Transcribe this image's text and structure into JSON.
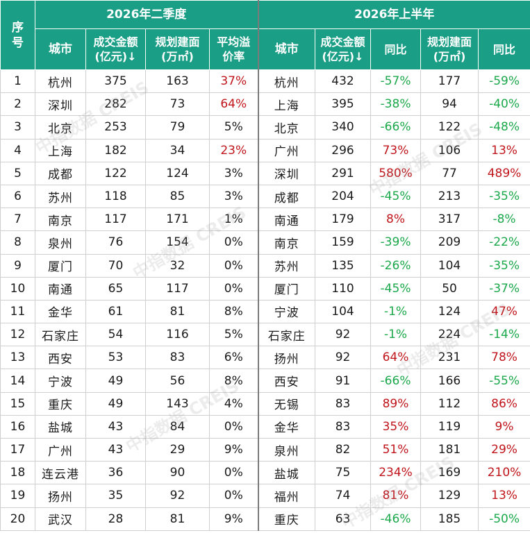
{
  "header": {
    "q2_title": "2026年二季度",
    "h1_title": "2026年上半年",
    "seq": "序号",
    "city": "城市",
    "amount": "成交金额(亿元)↓",
    "area": "规划建面(万㎡)",
    "premium": "平均溢价率",
    "yoy": "同比",
    "amount2": "成交金额(亿元)↓",
    "area2": "规划建面(万㎡)",
    "yoy2": "同比"
  },
  "rows": [
    {
      "seq": "1",
      "c1": "杭州",
      "a1": "375",
      "b1": "163",
      "p1": "37%",
      "c2": "杭州",
      "a2": "432",
      "y2": "-57%",
      "b2": "177",
      "z2": "-59%"
    },
    {
      "seq": "2",
      "c1": "深圳",
      "a1": "282",
      "b1": "73",
      "p1": "64%",
      "c2": "上海",
      "a2": "395",
      "y2": "-38%",
      "b2": "94",
      "z2": "-40%"
    },
    {
      "seq": "3",
      "c1": "北京",
      "a1": "253",
      "b1": "79",
      "p1": "5%",
      "c2": "北京",
      "a2": "340",
      "y2": "-66%",
      "b2": "122",
      "z2": "-48%"
    },
    {
      "seq": "4",
      "c1": "上海",
      "a1": "182",
      "b1": "34",
      "p1": "23%",
      "c2": "广州",
      "a2": "296",
      "y2": "73%",
      "b2": "106",
      "z2": "13%"
    },
    {
      "seq": "5",
      "c1": "成都",
      "a1": "122",
      "b1": "124",
      "p1": "3%",
      "c2": "深圳",
      "a2": "291",
      "y2": "580%",
      "b2": "77",
      "z2": "489%"
    },
    {
      "seq": "6",
      "c1": "苏州",
      "a1": "118",
      "b1": "85",
      "p1": "3%",
      "c2": "成都",
      "a2": "204",
      "y2": "-45%",
      "b2": "213",
      "z2": "-35%"
    },
    {
      "seq": "7",
      "c1": "南京",
      "a1": "117",
      "b1": "171",
      "p1": "1%",
      "c2": "南通",
      "a2": "179",
      "y2": "8%",
      "b2": "317",
      "z2": "-8%"
    },
    {
      "seq": "8",
      "c1": "泉州",
      "a1": "76",
      "b1": "154",
      "p1": "0%",
      "c2": "南京",
      "a2": "159",
      "y2": "-39%",
      "b2": "209",
      "z2": "-22%"
    },
    {
      "seq": "9",
      "c1": "厦门",
      "a1": "70",
      "b1": "32",
      "p1": "0%",
      "c2": "苏州",
      "a2": "135",
      "y2": "-26%",
      "b2": "104",
      "z2": "-35%"
    },
    {
      "seq": "10",
      "c1": "南通",
      "a1": "65",
      "b1": "117",
      "p1": "0%",
      "c2": "厦门",
      "a2": "110",
      "y2": "-45%",
      "b2": "50",
      "z2": "-37%"
    },
    {
      "seq": "11",
      "c1": "金华",
      "a1": "61",
      "b1": "81",
      "p1": "8%",
      "c2": "宁波",
      "a2": "104",
      "y2": "-1%",
      "b2": "124",
      "z2": "47%"
    },
    {
      "seq": "12",
      "c1": "石家庄",
      "a1": "54",
      "b1": "116",
      "p1": "5%",
      "c2": "石家庄",
      "a2": "92",
      "y2": "-1%",
      "b2": "224",
      "z2": "-14%"
    },
    {
      "seq": "13",
      "c1": "西安",
      "a1": "53",
      "b1": "83",
      "p1": "6%",
      "c2": "扬州",
      "a2": "92",
      "y2": "64%",
      "b2": "231",
      "z2": "78%"
    },
    {
      "seq": "14",
      "c1": "宁波",
      "a1": "49",
      "b1": "56",
      "p1": "8%",
      "c2": "西安",
      "a2": "91",
      "y2": "-66%",
      "b2": "166",
      "z2": "-55%"
    },
    {
      "seq": "15",
      "c1": "重庆",
      "a1": "49",
      "b1": "143",
      "p1": "4%",
      "c2": "无锡",
      "a2": "83",
      "y2": "89%",
      "b2": "112",
      "z2": "86%"
    },
    {
      "seq": "16",
      "c1": "盐城",
      "a1": "43",
      "b1": "84",
      "p1": "0%",
      "c2": "金华",
      "a2": "83",
      "y2": "35%",
      "b2": "119",
      "z2": "9%"
    },
    {
      "seq": "17",
      "c1": "广州",
      "a1": "43",
      "b1": "29",
      "p1": "9%",
      "c2": "泉州",
      "a2": "82",
      "y2": "51%",
      "b2": "181",
      "z2": "29%"
    },
    {
      "seq": "18",
      "c1": "连云港",
      "a1": "36",
      "b1": "90",
      "p1": "0%",
      "c2": "盐城",
      "a2": "75",
      "y2": "234%",
      "b2": "169",
      "z2": "210%"
    },
    {
      "seq": "19",
      "c1": "扬州",
      "a1": "35",
      "b1": "92",
      "p1": "0%",
      "c2": "福州",
      "a2": "74",
      "y2": "81%",
      "b2": "129",
      "z2": "13%"
    },
    {
      "seq": "20",
      "c1": "武汉",
      "a1": "28",
      "b1": "81",
      "p1": "9%",
      "c2": "重庆",
      "a2": "63",
      "y2": "-46%",
      "b2": "185",
      "z2": "-50%"
    }
  ],
  "watermark": "中指数据 CREIS",
  "colors": {
    "header_bg": "#1a9e85",
    "positive": "#c0141b",
    "negative": "#1aa84a"
  }
}
